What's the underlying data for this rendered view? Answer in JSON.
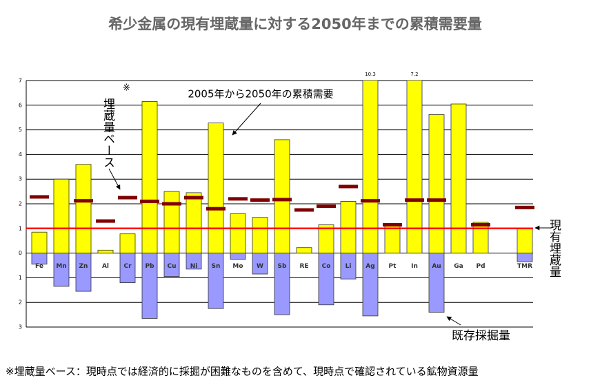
{
  "chart_data": {
    "type": "bar",
    "title": "希少金属の現有埋蔵量に対する2050年までの累積需要量",
    "categories": [
      "Fe",
      "Mn",
      "Zn",
      "Al",
      "Cr",
      "Pb",
      "Cu",
      "Ni",
      "Sn",
      "Mo",
      "W",
      "Sb",
      "RE",
      "Co",
      "Li",
      "Ag",
      "Pt",
      "In",
      "Au",
      "Ga",
      "Pd",
      null,
      "TMR"
    ],
    "series": [
      {
        "color": "#ffff00",
        "values": [
          0.85,
          3.0,
          3.6,
          0.12,
          0.78,
          6.15,
          2.5,
          2.45,
          5.28,
          1.6,
          1.45,
          4.6,
          0.22,
          1.15,
          2.1,
          10.3,
          1.15,
          7.2,
          5.62,
          6.05,
          1.25,
          null,
          1.0
        ],
        "value_labels": [
          null,
          null,
          null,
          null,
          null,
          null,
          null,
          null,
          null,
          null,
          null,
          null,
          null,
          null,
          null,
          "10.3",
          null,
          "7.2",
          null,
          null,
          null,
          null,
          null
        ]
      },
      {
        "color": "#9999ff",
        "values": [
          -0.45,
          -1.35,
          -1.55,
          null,
          -1.2,
          -2.65,
          -0.95,
          -0.65,
          -2.25,
          -0.25,
          -0.85,
          -2.5,
          null,
          -2.1,
          -1.05,
          -2.55,
          null,
          null,
          -2.4,
          null,
          null,
          null,
          -0.35
        ]
      },
      {
        "color": "#800000",
        "values": [
          2.28,
          null,
          2.12,
          1.3,
          2.25,
          2.1,
          2.0,
          2.25,
          1.8,
          2.2,
          2.15,
          2.17,
          1.75,
          1.9,
          2.7,
          2.12,
          1.15,
          2.15,
          2.15,
          null,
          1.15,
          null,
          1.85
        ]
      }
    ],
    "reference_line": {
      "value": 1,
      "color": "#ff0000"
    },
    "ylim": [
      -3,
      7
    ],
    "yticks": [
      {
        "value": -3,
        "label": "3"
      },
      {
        "value": -2,
        "label": "2"
      },
      {
        "value": -1,
        "label": "1"
      },
      0,
      1,
      2,
      3,
      4,
      5,
      6,
      7
    ],
    "grid": true,
    "annotations": {
      "reserve_base": "埋蔵量ベース",
      "reserve_base_mark": "※",
      "cumulative_demand": "2005年から2050年の累積需要",
      "current_reserves": "現有埋蔵量",
      "mined": "既存採掘量"
    },
    "footnote": "※埋蔵量ベース：現時点では経済的に採掘が困難なものを含めて、現時点で確認されている鉱物資源量"
  }
}
